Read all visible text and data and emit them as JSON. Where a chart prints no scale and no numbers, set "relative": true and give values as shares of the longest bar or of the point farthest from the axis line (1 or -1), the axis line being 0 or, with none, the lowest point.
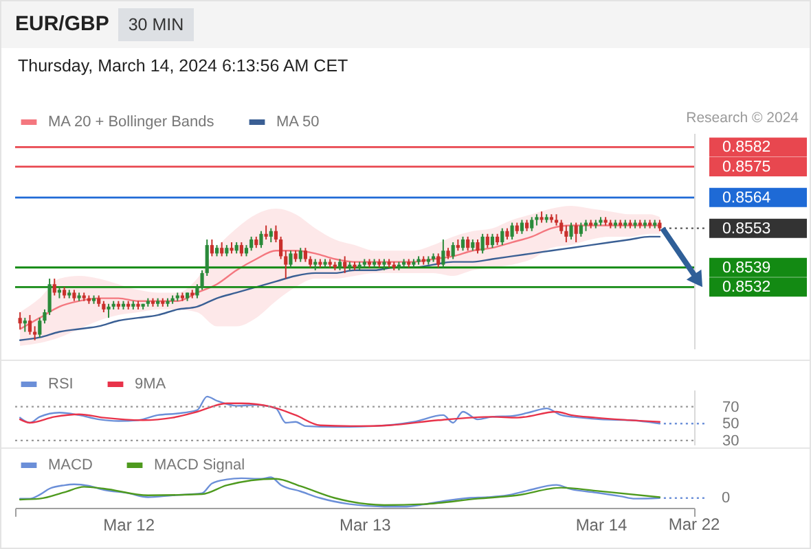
{
  "chart_data": [
    {
      "type": "candlestick",
      "title": "EUR/GBP",
      "subtitle": "30 MIN",
      "annotations": [
        "Thursday, March 14, 2024 6:13:56 AM CET",
        "Research © 2024"
      ],
      "x": [
        "2024-03-11T13:00",
        "2024-03-11T13:30",
        "2024-03-11T14:00",
        "2024-03-11T14:30",
        "2024-03-11T15:00",
        "2024-03-11T15:30",
        "2024-03-11T16:00",
        "2024-03-11T16:30",
        "2024-03-11T17:00",
        "2024-03-11T17:30",
        "2024-03-11T18:00",
        "2024-03-11T18:30",
        "2024-03-11T19:00",
        "2024-03-11T19:30",
        "2024-03-11T20:00",
        "2024-03-11T20:30",
        "2024-03-11T21:00",
        "2024-03-11T21:30",
        "2024-03-11T22:00",
        "2024-03-11T22:30",
        "2024-03-11T23:00",
        "2024-03-11T23:30",
        "2024-03-12T00:00",
        "2024-03-12T00:30",
        "2024-03-12T01:00",
        "2024-03-12T01:30",
        "2024-03-12T02:00",
        "2024-03-12T02:30",
        "2024-03-12T03:00",
        "2024-03-12T03:30",
        "2024-03-12T04:00",
        "2024-03-12T04:30",
        "2024-03-12T05:00",
        "2024-03-12T05:30",
        "2024-03-12T06:00",
        "2024-03-12T06:30",
        "2024-03-12T07:00",
        "2024-03-12T07:30",
        "2024-03-12T08:00",
        "2024-03-12T08:30",
        "2024-03-12T09:00",
        "2024-03-12T09:30",
        "2024-03-12T10:00",
        "2024-03-12T10:30",
        "2024-03-12T11:00",
        "2024-03-12T11:30",
        "2024-03-12T12:00",
        "2024-03-12T12:30",
        "2024-03-12T13:00",
        "2024-03-12T13:30",
        "2024-03-12T14:00",
        "2024-03-12T14:30",
        "2024-03-12T15:00",
        "2024-03-12T15:30",
        "2024-03-12T16:00",
        "2024-03-12T16:30",
        "2024-03-12T17:00",
        "2024-03-12T17:30",
        "2024-03-12T18:00",
        "2024-03-12T18:30",
        "2024-03-12T19:00",
        "2024-03-12T19:30",
        "2024-03-12T20:00",
        "2024-03-12T20:30",
        "2024-03-12T21:00",
        "2024-03-12T21:30",
        "2024-03-12T22:00",
        "2024-03-12T22:30",
        "2024-03-12T23:00",
        "2024-03-12T23:30",
        "2024-03-13T00:00",
        "2024-03-13T00:30",
        "2024-03-13T01:00",
        "2024-03-13T01:30",
        "2024-03-13T02:00",
        "2024-03-13T02:30",
        "2024-03-13T03:00",
        "2024-03-13T03:30",
        "2024-03-13T04:00",
        "2024-03-13T04:30",
        "2024-03-13T05:00",
        "2024-03-13T05:30",
        "2024-03-13T06:00",
        "2024-03-13T06:30",
        "2024-03-13T07:00",
        "2024-03-13T07:30",
        "2024-03-13T08:00",
        "2024-03-13T08:30",
        "2024-03-13T09:00",
        "2024-03-13T09:30",
        "2024-03-13T10:00",
        "2024-03-13T10:30",
        "2024-03-13T11:00",
        "2024-03-13T11:30",
        "2024-03-13T12:00",
        "2024-03-13T12:30",
        "2024-03-13T13:00",
        "2024-03-13T13:30",
        "2024-03-13T14:00",
        "2024-03-13T14:30",
        "2024-03-13T15:00",
        "2024-03-13T15:30",
        "2024-03-13T16:00",
        "2024-03-13T16:30",
        "2024-03-13T17:00",
        "2024-03-13T17:30",
        "2024-03-13T18:00",
        "2024-03-13T18:30",
        "2024-03-13T19:00",
        "2024-03-13T19:30",
        "2024-03-13T20:00",
        "2024-03-13T20:30",
        "2024-03-13T21:00",
        "2024-03-13T21:30",
        "2024-03-13T22:00",
        "2024-03-13T22:30",
        "2024-03-13T23:00",
        "2024-03-13T23:30",
        "2024-03-14T00:00",
        "2024-03-14T00:30",
        "2024-03-14T01:00",
        "2024-03-14T01:30",
        "2024-03-14T02:00",
        "2024-03-14T02:30",
        "2024-03-14T03:00",
        "2024-03-14T03:30",
        "2024-03-14T04:00",
        "2024-03-14T04:30",
        "2024-03-14T05:00",
        "2024-03-14T05:30",
        "2024-03-14T06:00"
      ],
      "ohlc": [
        [
          0.8521,
          0.8523,
          0.8517,
          0.8519
        ],
        [
          0.8519,
          0.8521,
          0.8516,
          0.852
        ],
        [
          0.852,
          0.8522,
          0.8515,
          0.8516
        ],
        [
          0.8516,
          0.8518,
          0.8513,
          0.8515
        ],
        [
          0.8515,
          0.8521,
          0.8514,
          0.852
        ],
        [
          0.852,
          0.8524,
          0.8519,
          0.8523
        ],
        [
          0.8523,
          0.8535,
          0.8522,
          0.8533
        ],
        [
          0.8533,
          0.8535,
          0.8529,
          0.853
        ],
        [
          0.853,
          0.8532,
          0.8528,
          0.8531
        ],
        [
          0.8531,
          0.8532,
          0.8528,
          0.8529
        ],
        [
          0.8529,
          0.8531,
          0.8528,
          0.853
        ],
        [
          0.853,
          0.8531,
          0.8527,
          0.8528
        ],
        [
          0.8528,
          0.853,
          0.8527,
          0.8529
        ],
        [
          0.8529,
          0.853,
          0.8527,
          0.8528
        ],
        [
          0.8528,
          0.8529,
          0.8526,
          0.8527
        ],
        [
          0.8527,
          0.8529,
          0.8526,
          0.8528
        ],
        [
          0.8528,
          0.8529,
          0.8525,
          0.8526
        ],
        [
          0.8526,
          0.8527,
          0.8523,
          0.8524
        ],
        [
          0.8524,
          0.8526,
          0.8521,
          0.8525
        ],
        [
          0.8525,
          0.8527,
          0.8524,
          0.8526
        ],
        [
          0.8526,
          0.8527,
          0.8524,
          0.8525
        ],
        [
          0.8525,
          0.8527,
          0.8524,
          0.8526
        ],
        [
          0.8526,
          0.8527,
          0.8524,
          0.8525
        ],
        [
          0.8525,
          0.8527,
          0.8524,
          0.8526
        ],
        [
          0.8526,
          0.8527,
          0.8524,
          0.8525
        ],
        [
          0.8525,
          0.8526,
          0.8524,
          0.8526
        ],
        [
          0.8526,
          0.8528,
          0.8525,
          0.8527
        ],
        [
          0.8527,
          0.8528,
          0.8525,
          0.8526
        ],
        [
          0.8526,
          0.8528,
          0.8525,
          0.8527
        ],
        [
          0.8527,
          0.8528,
          0.8525,
          0.8526
        ],
        [
          0.8526,
          0.8528,
          0.8525,
          0.8527
        ],
        [
          0.8527,
          0.8529,
          0.8526,
          0.8528
        ],
        [
          0.8528,
          0.853,
          0.8527,
          0.8529
        ],
        [
          0.8529,
          0.853,
          0.8527,
          0.8528
        ],
        [
          0.8528,
          0.853,
          0.8527,
          0.853
        ],
        [
          0.853,
          0.8531,
          0.8528,
          0.8529
        ],
        [
          0.8529,
          0.8533,
          0.8528,
          0.8532
        ],
        [
          0.8532,
          0.8538,
          0.8531,
          0.8537
        ],
        [
          0.8537,
          0.8549,
          0.8536,
          0.8547
        ],
        [
          0.8547,
          0.8549,
          0.8543,
          0.8544
        ],
        [
          0.8544,
          0.8547,
          0.8543,
          0.8546
        ],
        [
          0.8546,
          0.8548,
          0.8543,
          0.8544
        ],
        [
          0.8544,
          0.8547,
          0.8543,
          0.8546
        ],
        [
          0.8546,
          0.8548,
          0.8544,
          0.8545
        ],
        [
          0.8545,
          0.8548,
          0.8544,
          0.8547
        ],
        [
          0.8547,
          0.8548,
          0.8543,
          0.8544
        ],
        [
          0.8544,
          0.8547,
          0.8543,
          0.8546
        ],
        [
          0.8546,
          0.855,
          0.8545,
          0.8549
        ],
        [
          0.8549,
          0.855,
          0.8546,
          0.8547
        ],
        [
          0.8547,
          0.8552,
          0.8546,
          0.8551
        ],
        [
          0.8551,
          0.8554,
          0.8549,
          0.855
        ],
        [
          0.855,
          0.8553,
          0.8548,
          0.8552
        ],
        [
          0.8552,
          0.8554,
          0.8548,
          0.8549
        ],
        [
          0.8549,
          0.855,
          0.8542,
          0.8543
        ],
        [
          0.8543,
          0.8545,
          0.8535,
          0.854
        ],
        [
          0.854,
          0.8545,
          0.8539,
          0.8544
        ],
        [
          0.8544,
          0.8545,
          0.8541,
          0.8542
        ],
        [
          0.8542,
          0.8546,
          0.8541,
          0.8545
        ],
        [
          0.8545,
          0.8546,
          0.8541,
          0.8542
        ],
        [
          0.8542,
          0.8543,
          0.8539,
          0.854
        ],
        [
          0.854,
          0.8542,
          0.8538,
          0.8541
        ],
        [
          0.8541,
          0.8542,
          0.8539,
          0.854
        ],
        [
          0.854,
          0.8542,
          0.8539,
          0.8541
        ],
        [
          0.8541,
          0.8542,
          0.8539,
          0.854
        ],
        [
          0.854,
          0.8541,
          0.8538,
          0.8539
        ],
        [
          0.8539,
          0.8542,
          0.8538,
          0.8541
        ],
        [
          0.8541,
          0.8543,
          0.8537,
          0.8539
        ],
        [
          0.8539,
          0.8541,
          0.8538,
          0.854
        ],
        [
          0.854,
          0.8541,
          0.8538,
          0.8539
        ],
        [
          0.8539,
          0.8541,
          0.8538,
          0.854
        ],
        [
          0.854,
          0.8542,
          0.8539,
          0.8541
        ],
        [
          0.8541,
          0.8542,
          0.8539,
          0.854
        ],
        [
          0.854,
          0.8542,
          0.8539,
          0.8541
        ],
        [
          0.8541,
          0.8542,
          0.8539,
          0.854
        ],
        [
          0.854,
          0.8542,
          0.8538,
          0.8541
        ],
        [
          0.8541,
          0.8542,
          0.8539,
          0.854
        ],
        [
          0.854,
          0.8541,
          0.8538,
          0.8539
        ],
        [
          0.8539,
          0.8541,
          0.8538,
          0.854
        ],
        [
          0.854,
          0.8542,
          0.8539,
          0.8541
        ],
        [
          0.8541,
          0.8542,
          0.8539,
          0.854
        ],
        [
          0.854,
          0.8542,
          0.8539,
          0.8541
        ],
        [
          0.8541,
          0.8543,
          0.854,
          0.8542
        ],
        [
          0.8542,
          0.8543,
          0.854,
          0.8541
        ],
        [
          0.8541,
          0.8543,
          0.854,
          0.8542
        ],
        [
          0.8542,
          0.8544,
          0.8541,
          0.8543
        ],
        [
          0.8543,
          0.8544,
          0.8539,
          0.854
        ],
        [
          0.854,
          0.8549,
          0.8539,
          0.8545
        ],
        [
          0.8545,
          0.8546,
          0.8542,
          0.8543
        ],
        [
          0.8543,
          0.8548,
          0.8542,
          0.8547
        ],
        [
          0.8547,
          0.8549,
          0.8545,
          0.8546
        ],
        [
          0.8546,
          0.855,
          0.8545,
          0.8549
        ],
        [
          0.8549,
          0.855,
          0.8545,
          0.8546
        ],
        [
          0.8546,
          0.8549,
          0.8545,
          0.8548
        ],
        [
          0.8548,
          0.8549,
          0.8544,
          0.8545
        ],
        [
          0.8545,
          0.8551,
          0.8544,
          0.855
        ],
        [
          0.855,
          0.8551,
          0.8546,
          0.8547
        ],
        [
          0.8547,
          0.8551,
          0.8546,
          0.855
        ],
        [
          0.855,
          0.8551,
          0.8547,
          0.8548
        ],
        [
          0.8548,
          0.8553,
          0.8547,
          0.8552
        ],
        [
          0.8552,
          0.8553,
          0.8549,
          0.855
        ],
        [
          0.855,
          0.8555,
          0.8549,
          0.8554
        ],
        [
          0.8554,
          0.8555,
          0.8551,
          0.8552
        ],
        [
          0.8552,
          0.8556,
          0.8551,
          0.8555
        ],
        [
          0.8555,
          0.8556,
          0.8552,
          0.8553
        ],
        [
          0.8553,
          0.8557,
          0.8552,
          0.8556
        ],
        [
          0.8556,
          0.8558,
          0.8554,
          0.8557
        ],
        [
          0.8557,
          0.8559,
          0.8555,
          0.8556
        ],
        [
          0.8556,
          0.8558,
          0.8555,
          0.8557
        ],
        [
          0.8557,
          0.8558,
          0.8555,
          0.8556
        ],
        [
          0.8556,
          0.8558,
          0.8554,
          0.8555
        ],
        [
          0.8555,
          0.8556,
          0.8551,
          0.8552
        ],
        [
          0.8552,
          0.8554,
          0.8548,
          0.855
        ],
        [
          0.855,
          0.8555,
          0.8549,
          0.8554
        ],
        [
          0.8554,
          0.8555,
          0.8548,
          0.8551
        ],
        [
          0.8551,
          0.8555,
          0.855,
          0.8554
        ],
        [
          0.8554,
          0.8556,
          0.8552,
          0.8555
        ],
        [
          0.8555,
          0.8556,
          0.8553,
          0.8554
        ],
        [
          0.8554,
          0.8556,
          0.8553,
          0.8555
        ],
        [
          0.8555,
          0.8557,
          0.8554,
          0.8556
        ],
        [
          0.8556,
          0.8557,
          0.8554,
          0.8555
        ],
        [
          0.8555,
          0.8556,
          0.8553,
          0.8554
        ],
        [
          0.8554,
          0.8556,
          0.8553,
          0.8555
        ],
        [
          0.8555,
          0.8556,
          0.8553,
          0.8554
        ],
        [
          0.8554,
          0.8556,
          0.8553,
          0.8555
        ],
        [
          0.8555,
          0.8556,
          0.8553,
          0.8554
        ],
        [
          0.8554,
          0.8556,
          0.8553,
          0.8555
        ],
        [
          0.8555,
          0.8556,
          0.8553,
          0.8554
        ],
        [
          0.8554,
          0.8556,
          0.8553,
          0.8555
        ],
        [
          0.8555,
          0.8556,
          0.8553,
          0.8554
        ],
        [
          0.8554,
          0.8556,
          0.8553,
          0.8555
        ],
        [
          0.8555,
          0.8556,
          0.8552,
          0.8553
        ]
      ],
      "colors": [
        "#c9302c",
        "#2a8a3a",
        "#c9302c",
        "#c9302c",
        "#2a8a3a",
        "#2a8a3a",
        "#2a8a3a",
        "#c9302c",
        "#2a8a3a",
        "#c9302c",
        "#2a8a3a",
        "#c9302c",
        "#2a8a3a",
        "#c9302c",
        "#c9302c",
        "#2a8a3a",
        "#c9302c",
        "#c9302c",
        "#2a8a3a",
        "#2a8a3a",
        "#c9302c",
        "#2a8a3a",
        "#c9302c",
        "#2a8a3a",
        "#c9302c",
        "#2a8a3a",
        "#2a8a3a",
        "#c9302c",
        "#2a8a3a",
        "#c9302c",
        "#2a8a3a",
        "#2a8a3a",
        "#2a8a3a",
        "#c9302c",
        "#2a8a3a",
        "#c9302c",
        "#2a8a3a",
        "#2a8a3a",
        "#2a8a3a",
        "#c9302c",
        "#2a8a3a",
        "#c9302c",
        "#2a8a3a",
        "#c9302c",
        "#2a8a3a",
        "#c9302c",
        "#2a8a3a",
        "#2a8a3a",
        "#c9302c",
        "#2a8a3a",
        "#c9302c",
        "#2a8a3a",
        "#c9302c",
        "#c9302c",
        "#c9302c",
        "#2a8a3a",
        "#c9302c",
        "#2a8a3a",
        "#c9302c",
        "#c9302c",
        "#2a8a3a",
        "#c9302c",
        "#2a8a3a",
        "#c9302c",
        "#c9302c",
        "#2a8a3a",
        "#c9302c",
        "#2a8a3a",
        "#c9302c",
        "#2a8a3a",
        "#2a8a3a",
        "#c9302c",
        "#2a8a3a",
        "#c9302c",
        "#2a8a3a",
        "#c9302c",
        "#c9302c",
        "#2a8a3a",
        "#2a8a3a",
        "#c9302c",
        "#2a8a3a",
        "#2a8a3a",
        "#c9302c",
        "#2a8a3a",
        "#2a8a3a",
        "#c9302c",
        "#2a8a3a",
        "#c9302c",
        "#2a8a3a",
        "#c9302c",
        "#2a8a3a",
        "#c9302c",
        "#2a8a3a",
        "#c9302c",
        "#2a8a3a",
        "#c9302c",
        "#2a8a3a",
        "#c9302c",
        "#2a8a3a",
        "#c9302c",
        "#2a8a3a",
        "#c9302c",
        "#2a8a3a",
        "#c9302c",
        "#2a8a3a",
        "#2a8a3a",
        "#c9302c",
        "#2a8a3a",
        "#c9302c",
        "#c9302c",
        "#c9302c",
        "#c9302c",
        "#2a8a3a",
        "#c9302c",
        "#2a8a3a",
        "#2a8a3a",
        "#c9302c",
        "#2a8a3a",
        "#2a8a3a",
        "#c9302c",
        "#c9302c",
        "#2a8a3a",
        "#c9302c",
        "#2a8a3a",
        "#c9302c",
        "#2a8a3a",
        "#c9302c",
        "#2a8a3a",
        "#c9302c",
        "#2a8a3a",
        "#c9302c"
      ],
      "series": [
        {
          "name": "MA 20 + Bollinger Bands",
          "type": "line",
          "color": "#f4777f",
          "x": [
            "2024-03-11T13:00",
            "2024-03-11T15:00",
            "2024-03-11T17:00",
            "2024-03-11T19:00",
            "2024-03-11T21:00",
            "2024-03-11T23:00",
            "2024-03-12T01:00",
            "2024-03-12T03:00",
            "2024-03-12T05:00",
            "2024-03-12T07:00",
            "2024-03-12T09:00",
            "2024-03-12T11:00",
            "2024-03-12T13:00",
            "2024-03-12T15:00",
            "2024-03-12T17:00",
            "2024-03-12T19:00",
            "2024-03-12T21:00",
            "2024-03-12T23:00",
            "2024-03-13T01:00",
            "2024-03-13T03:00",
            "2024-03-13T05:00",
            "2024-03-13T07:00",
            "2024-03-13T09:00",
            "2024-03-13T11:00",
            "2024-03-13T13:00",
            "2024-03-13T15:00",
            "2024-03-13T17:00",
            "2024-03-13T19:00",
            "2024-03-13T21:00",
            "2024-03-13T23:00",
            "2024-03-14T01:00",
            "2024-03-14T03:00",
            "2024-03-14T05:00",
            "2024-03-14T06:00"
          ],
          "values": [
            0.8517,
            0.8521,
            0.8525,
            0.8527,
            0.8528,
            0.8528,
            0.8527,
            0.8527,
            0.8527,
            0.853,
            0.8533,
            0.8538,
            0.8542,
            0.8545,
            0.8545,
            0.8544,
            0.8542,
            0.8541,
            0.8541,
            0.8541,
            0.8541,
            0.8542,
            0.8543,
            0.8545,
            0.8546,
            0.8548,
            0.855,
            0.8553,
            0.8554,
            0.8554,
            0.8554,
            0.8554,
            0.8554,
            0.8554
          ],
          "lower": [
            0.8511,
            0.8512,
            0.8514,
            0.8517,
            0.852,
            0.8522,
            0.8523,
            0.8524,
            0.8524,
            0.8523,
            0.8518,
            0.8518,
            0.8521,
            0.8527,
            0.8532,
            0.8535,
            0.8535,
            0.8536,
            0.8537,
            0.8537,
            0.8537,
            0.8537,
            0.8536,
            0.8538,
            0.8539,
            0.854,
            0.8542,
            0.8546,
            0.8547,
            0.8549,
            0.855,
            0.855,
            0.8551,
            0.8551
          ],
          "upper": [
            0.8523,
            0.8528,
            0.8535,
            0.8536,
            0.8535,
            0.8533,
            0.8531,
            0.853,
            0.853,
            0.8535,
            0.8546,
            0.8553,
            0.8558,
            0.856,
            0.8558,
            0.8553,
            0.8549,
            0.8547,
            0.8545,
            0.8545,
            0.8545,
            0.8547,
            0.855,
            0.8552,
            0.8553,
            0.8556,
            0.8558,
            0.856,
            0.8561,
            0.856,
            0.8559,
            0.8558,
            0.8558,
            0.8557
          ]
        },
        {
          "name": "MA 50",
          "type": "line",
          "color": "#3a5f94",
          "x": [
            "2024-03-11T13:00",
            "2024-03-11T15:00",
            "2024-03-11T17:00",
            "2024-03-11T19:00",
            "2024-03-11T21:00",
            "2024-03-11T23:00",
            "2024-03-12T01:00",
            "2024-03-12T03:00",
            "2024-03-12T05:00",
            "2024-03-12T07:00",
            "2024-03-12T09:00",
            "2024-03-12T11:00",
            "2024-03-12T13:00",
            "2024-03-12T15:00",
            "2024-03-12T17:00",
            "2024-03-12T19:00",
            "2024-03-12T21:00",
            "2024-03-12T23:00",
            "2024-03-13T01:00",
            "2024-03-13T03:00",
            "2024-03-13T05:00",
            "2024-03-13T07:00",
            "2024-03-13T09:00",
            "2024-03-13T11:00",
            "2024-03-13T13:00",
            "2024-03-13T15:00",
            "2024-03-13T17:00",
            "2024-03-13T19:00",
            "2024-03-13T21:00",
            "2024-03-13T23:00",
            "2024-03-14T01:00",
            "2024-03-14T03:00",
            "2024-03-14T05:00",
            "2024-03-14T06:00"
          ],
          "values": [
            0.8513,
            0.8514,
            0.8516,
            0.8517,
            0.8518,
            0.852,
            0.8521,
            0.8522,
            0.8524,
            0.8525,
            0.8528,
            0.853,
            0.8532,
            0.8534,
            0.8536,
            0.8537,
            0.8537,
            0.8538,
            0.8538,
            0.8539,
            0.8539,
            0.854,
            0.8541,
            0.8541,
            0.8542,
            0.8543,
            0.8544,
            0.8545,
            0.8546,
            0.8547,
            0.8548,
            0.8549,
            0.855,
            0.855
          ]
        }
      ],
      "xlim": [
        "2024-03-11T12:30",
        "2024-03-14T09:30"
      ],
      "ylim": [
        0.851,
        0.8587
      ],
      "yticks": [
        0.8532,
        0.8539,
        0.8553,
        0.8564,
        0.8575,
        0.8582
      ],
      "ref_lines": [
        {
          "axis": "y",
          "value": 0.8582,
          "color": "#e8474f"
        },
        {
          "axis": "y",
          "value": 0.8575,
          "color": "#e8474f"
        },
        {
          "axis": "y",
          "value": 0.8564,
          "color": "#1e6ad6"
        },
        {
          "axis": "y",
          "value": 0.8539,
          "color": "#138a13"
        },
        {
          "axis": "y",
          "value": 0.8532,
          "color": "#138a13"
        }
      ],
      "legend": "top left",
      "tick_labels": "y"
    },
    {
      "type": "line",
      "series": [
        {
          "name": "RSI",
          "color": "#6b8fd8",
          "x": [
            "2024-03-11T13:00",
            "2024-03-11T14:00",
            "2024-03-11T15:00",
            "2024-03-11T17:00",
            "2024-03-11T19:00",
            "2024-03-11T21:00",
            "2024-03-11T23:00",
            "2024-03-12T01:00",
            "2024-03-12T03:00",
            "2024-03-12T05:00",
            "2024-03-12T07:00",
            "2024-03-12T08:00",
            "2024-03-12T09:00",
            "2024-03-12T11:00",
            "2024-03-12T13:00",
            "2024-03-12T15:00",
            "2024-03-12T16:00",
            "2024-03-12T17:00",
            "2024-03-12T18:00",
            "2024-03-12T21:00",
            "2024-03-13T01:00",
            "2024-03-13T05:00",
            "2024-03-13T08:00",
            "2024-03-13T09:00",
            "2024-03-13T10:00",
            "2024-03-13T11:30",
            "2024-03-13T13:00",
            "2024-03-13T15:00",
            "2024-03-13T17:00",
            "2024-03-13T18:30",
            "2024-03-13T20:00",
            "2024-03-13T22:00",
            "2024-03-14T00:00",
            "2024-03-14T03:00",
            "2024-03-14T06:00"
          ],
          "values": [
            57,
            51,
            58,
            63,
            60,
            55,
            53,
            54,
            60,
            62,
            66,
            82,
            77,
            71,
            72,
            68,
            51,
            52,
            47,
            46,
            47,
            52,
            60,
            51,
            64,
            55,
            58,
            59,
            64,
            68,
            60,
            57,
            55,
            54,
            50
          ]
        },
        {
          "name": "9MA",
          "color": "#e8334a",
          "x": [
            "2024-03-11T13:00",
            "2024-03-11T14:00",
            "2024-03-11T16:30",
            "2024-03-11T19:00",
            "2024-03-11T21:30",
            "2024-03-12T01:30",
            "2024-03-12T04:30",
            "2024-03-12T07:00",
            "2024-03-12T10:00",
            "2024-03-12T11:30",
            "2024-03-12T14:30",
            "2024-03-12T17:00",
            "2024-03-12T19:30",
            "2024-03-12T23:30",
            "2024-03-13T02:30",
            "2024-03-13T07:30",
            "2024-03-13T13:00",
            "2024-03-13T15:30",
            "2024-03-13T19:30",
            "2024-03-13T21:00",
            "2024-03-13T23:30",
            "2024-03-14T06:00"
          ],
          "values": [
            55,
            51,
            58,
            61,
            57,
            54,
            57,
            64,
            74,
            74,
            70,
            60,
            48,
            47,
            48,
            54,
            58,
            57,
            64,
            60,
            57,
            52
          ]
        }
      ],
      "xlim": [
        "2024-03-11T12:30",
        "2024-03-14T09:30"
      ],
      "ylim": [
        25,
        90
      ],
      "yticks": [
        30,
        50,
        70
      ],
      "ref_lines": [
        {
          "axis": "y",
          "value": 70,
          "color": "#9a9a9a",
          "line_style": "dotted"
        },
        {
          "axis": "y",
          "value": 30,
          "color": "#9a9a9a",
          "line_style": "dotted"
        }
      ],
      "legend": "top left",
      "tick_labels": "y"
    },
    {
      "type": "line",
      "relative": true,
      "annotations": [
        "0",
        "Mar 22"
      ],
      "series": [
        {
          "name": "MACD",
          "color": "#6b8fd8",
          "x": [
            "2024-03-11T13:00",
            "2024-03-11T14:00",
            "2024-03-11T15:00",
            "2024-03-11T16:00",
            "2024-03-11T17:30",
            "2024-03-11T18:30",
            "2024-03-11T20:00",
            "2024-03-11T21:30",
            "2024-03-12T00:00",
            "2024-03-12T02:00",
            "2024-03-12T04:30",
            "2024-03-12T07:30",
            "2024-03-12T08:30",
            "2024-03-12T10:00",
            "2024-03-12T11:30",
            "2024-03-12T13:30",
            "2024-03-12T14:30",
            "2024-03-12T15:30",
            "2024-03-12T17:30",
            "2024-03-12T19:30",
            "2024-03-12T22:30",
            "2024-03-13T02:00",
            "2024-03-13T04:00",
            "2024-03-13T06:00",
            "2024-03-13T08:00",
            "2024-03-13T10:30",
            "2024-03-13T12:30",
            "2024-03-13T14:30",
            "2024-03-13T16:30",
            "2024-03-13T19:30",
            "2024-03-13T21:00",
            "2024-03-13T23:30",
            "2024-03-14T02:00",
            "2024-03-14T03:30",
            "2024-03-14T06:00"
          ],
          "values": [
            0.3,
            0.3,
            0.43,
            0.63,
            0.74,
            0.77,
            0.72,
            0.59,
            0.48,
            0.35,
            0.41,
            0.48,
            0.8,
            0.93,
            0.97,
            0.95,
            1,
            0.75,
            0.54,
            0.32,
            0.12,
            0.04,
            0.04,
            0.11,
            0.22,
            0.32,
            0.35,
            0.41,
            0.56,
            0.75,
            0.61,
            0.5,
            0.38,
            0.3,
            0.32
          ]
        },
        {
          "name": "MACD Signal",
          "color": "#4e9a1e",
          "x": [
            "2024-03-11T13:00",
            "2024-03-11T15:00",
            "2024-03-11T17:30",
            "2024-03-11T19:30",
            "2024-03-11T21:30",
            "2024-03-12T02:00",
            "2024-03-12T07:30",
            "2024-03-12T10:00",
            "2024-03-12T15:00",
            "2024-03-12T17:30",
            "2024-03-12T21:00",
            "2024-03-13T02:00",
            "2024-03-13T06:00",
            "2024-03-13T11:30",
            "2024-03-13T15:30",
            "2024-03-13T20:00",
            "2024-03-13T23:30",
            "2024-03-14T06:00"
          ],
          "values": [
            0.27,
            0.3,
            0.51,
            0.69,
            0.63,
            0.41,
            0.45,
            0.74,
            0.95,
            0.71,
            0.32,
            0.09,
            0.12,
            0.3,
            0.41,
            0.66,
            0.56,
            0.35
          ]
        }
      ],
      "xlim": [
        "2024-03-11T12:30",
        "2024-03-14T09:30"
      ],
      "xticks": [
        {
          "value": "2024-03-11T12:30",
          "label": null
        },
        {
          "value": "2024-03-12",
          "label": "Mar 12"
        },
        {
          "value": "2024-03-13",
          "label": "Mar 13"
        },
        {
          "value": "2024-03-14",
          "label": "Mar 14"
        },
        {
          "value": "2024-03-14T09:30",
          "label": null
        }
      ],
      "legend": "top left",
      "tick_labels": "x"
    }
  ]
}
